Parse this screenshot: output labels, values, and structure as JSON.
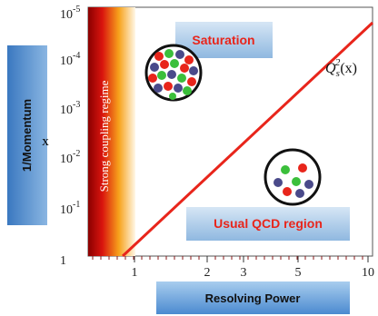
{
  "y_axis": {
    "label": "1/Momentum",
    "variable": "x",
    "ticks": [
      {
        "base": "10",
        "exponent": "-5"
      },
      {
        "base": "10",
        "exponent": "-4"
      },
      {
        "base": "10",
        "exponent": "-3"
      },
      {
        "base": "10",
        "exponent": "-2"
      },
      {
        "base": "10",
        "exponent": "-1"
      },
      {
        "base": "1"
      }
    ]
  },
  "x_axis": {
    "label": "Resolving Power",
    "ticks": [
      "1",
      "2",
      "3",
      "5",
      "10"
    ]
  },
  "regions": {
    "strong": "Strong coupling regime",
    "saturation": "Saturation",
    "usual": "Usual QCD region"
  },
  "curve_label": {
    "symbol": "Q",
    "subscript": "s",
    "superscript": "2",
    "argument": "(x)"
  }
}
